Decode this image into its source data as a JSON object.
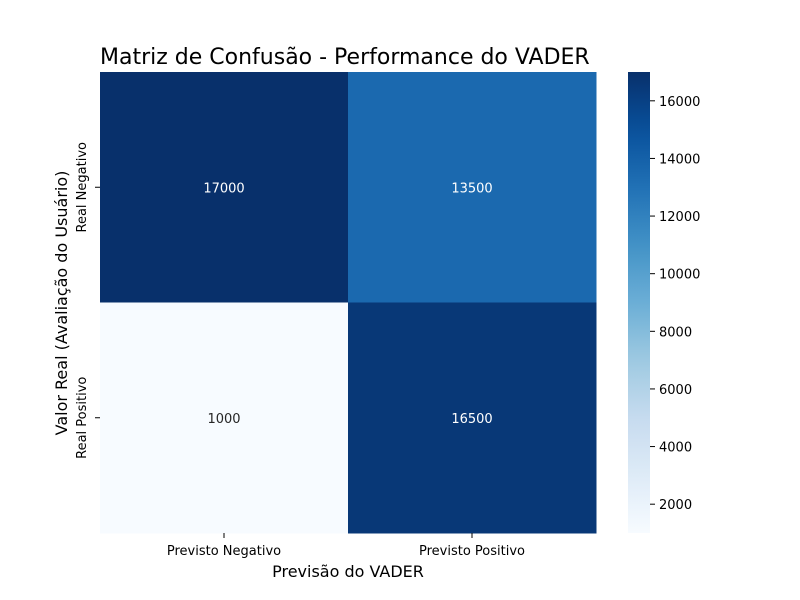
{
  "chart_data": {
    "type": "heatmap",
    "title": "Matriz de Confusão - Performance do VADER",
    "xlabel": "Previsão do VADER",
    "ylabel": "Valor Real (Avaliação do Usuário)",
    "x_categories": [
      "Previsto Negativo",
      "Previsto Positivo"
    ],
    "y_categories": [
      "Real Negativo",
      "Real Positivo"
    ],
    "values": [
      [
        17000,
        13500
      ],
      [
        1000,
        16500
      ]
    ],
    "colormap": "Blues",
    "colorbar": {
      "range": [
        1000,
        17000
      ],
      "ticks": [
        2000,
        4000,
        6000,
        8000,
        10000,
        12000,
        14000,
        16000
      ]
    }
  }
}
